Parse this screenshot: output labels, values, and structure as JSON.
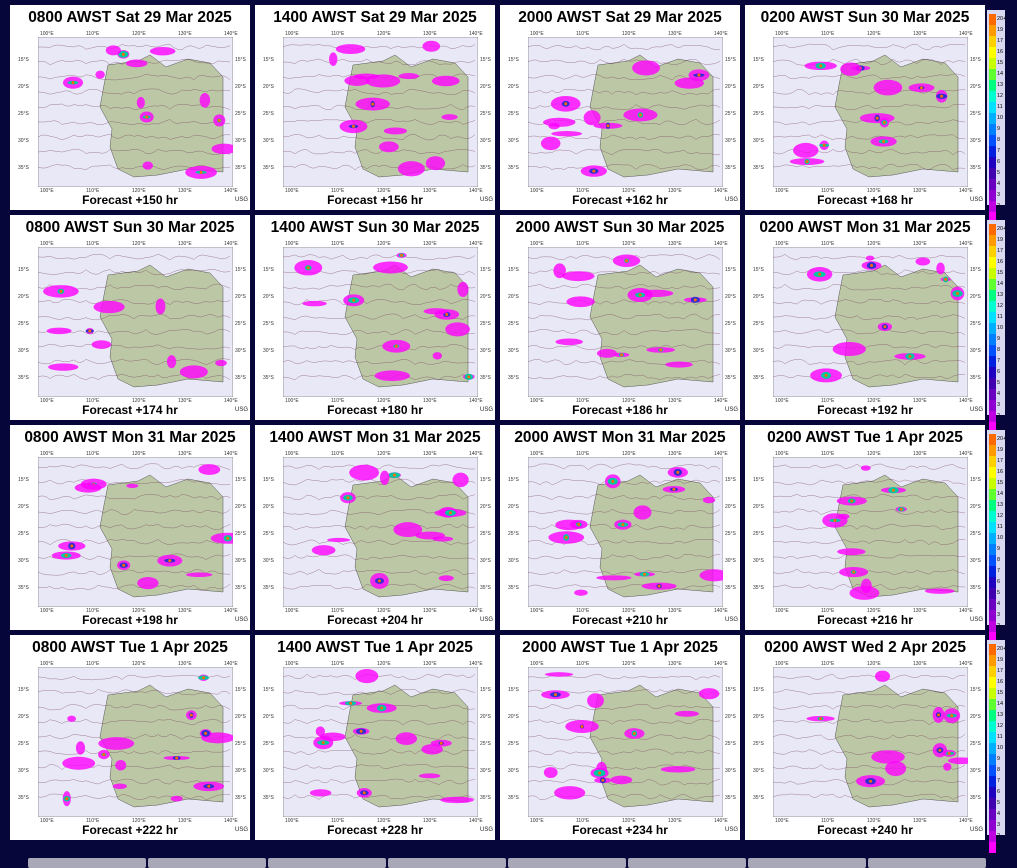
{
  "panels": [
    {
      "title": "0800 AWST Sat 29 Mar 2025",
      "forecast": "Forecast +150 hr",
      "credit": "USG"
    },
    {
      "title": "1400 AWST Sat 29 Mar 2025",
      "forecast": "Forecast +156 hr",
      "credit": "USG"
    },
    {
      "title": "2000 AWST Sat 29 Mar 2025",
      "forecast": "Forecast +162 hr",
      "credit": "USG"
    },
    {
      "title": "0200 AWST Sun 30 Mar 2025",
      "forecast": "Forecast +168 hr",
      "credit": "USG"
    },
    {
      "title": "0800 AWST Sun 30 Mar 2025",
      "forecast": "Forecast +174 hr",
      "credit": "USG"
    },
    {
      "title": "1400 AWST Sun 30 Mar 2025",
      "forecast": "Forecast +180 hr",
      "credit": "USG"
    },
    {
      "title": "2000 AWST Sun 30 Mar 2025",
      "forecast": "Forecast +186 hr",
      "credit": "USG"
    },
    {
      "title": "0200 AWST Mon 31 Mar 2025",
      "forecast": "Forecast +192 hr",
      "credit": "USG"
    },
    {
      "title": "0800 AWST Mon 31 Mar 2025",
      "forecast": "Forecast +198 hr",
      "credit": "USG"
    },
    {
      "title": "1400 AWST Mon 31 Mar 2025",
      "forecast": "Forecast +204 hr",
      "credit": "USG"
    },
    {
      "title": "2000 AWST Mon 31 Mar 2025",
      "forecast": "Forecast +210 hr",
      "credit": "USG"
    },
    {
      "title": "0200 AWST Tue 1 Apr 2025",
      "forecast": "Forecast +216 hr",
      "credit": "USG"
    },
    {
      "title": "0800 AWST Tue 1 Apr 2025",
      "forecast": "Forecast +222 hr",
      "credit": "USG"
    },
    {
      "title": "1400 AWST Tue 1 Apr 2025",
      "forecast": "Forecast +228 hr",
      "credit": "USG"
    },
    {
      "title": "2000 AWST Tue 1 Apr 2025",
      "forecast": "Forecast +234 hr",
      "credit": "USG"
    },
    {
      "title": "0200 AWST Wed 2 Apr 2025",
      "forecast": "Forecast +240 hr",
      "credit": "USG"
    }
  ],
  "map_labels": {
    "lats": [
      "15°S",
      "20°S",
      "25°S",
      "30°S",
      "35°S"
    ],
    "lons": [
      "100°E",
      "110°E",
      "120°E",
      "130°E",
      "140°E"
    ]
  },
  "legend": {
    "values": [
      "20+",
      "19",
      "17",
      "16",
      "15",
      "14",
      "13",
      "12",
      "11",
      "10",
      "9",
      "8",
      "7",
      "6",
      "5",
      "4",
      "3",
      "2",
      "1"
    ],
    "colors": [
      "#ff6a00",
      "#ff9a00",
      "#ffd000",
      "#ffff00",
      "#c8ff00",
      "#60ff30",
      "#00ff80",
      "#00ffd0",
      "#00e0ff",
      "#00b0ff",
      "#0080ff",
      "#0050ff",
      "#0020e0",
      "#2000c0",
      "#4000b0",
      "#6a00c0",
      "#9000d0",
      "#c000e0",
      "#ff00ff"
    ]
  },
  "colors": {
    "background": "#06063a",
    "land": "#bcc7a6",
    "rain": "#ff00ff"
  }
}
